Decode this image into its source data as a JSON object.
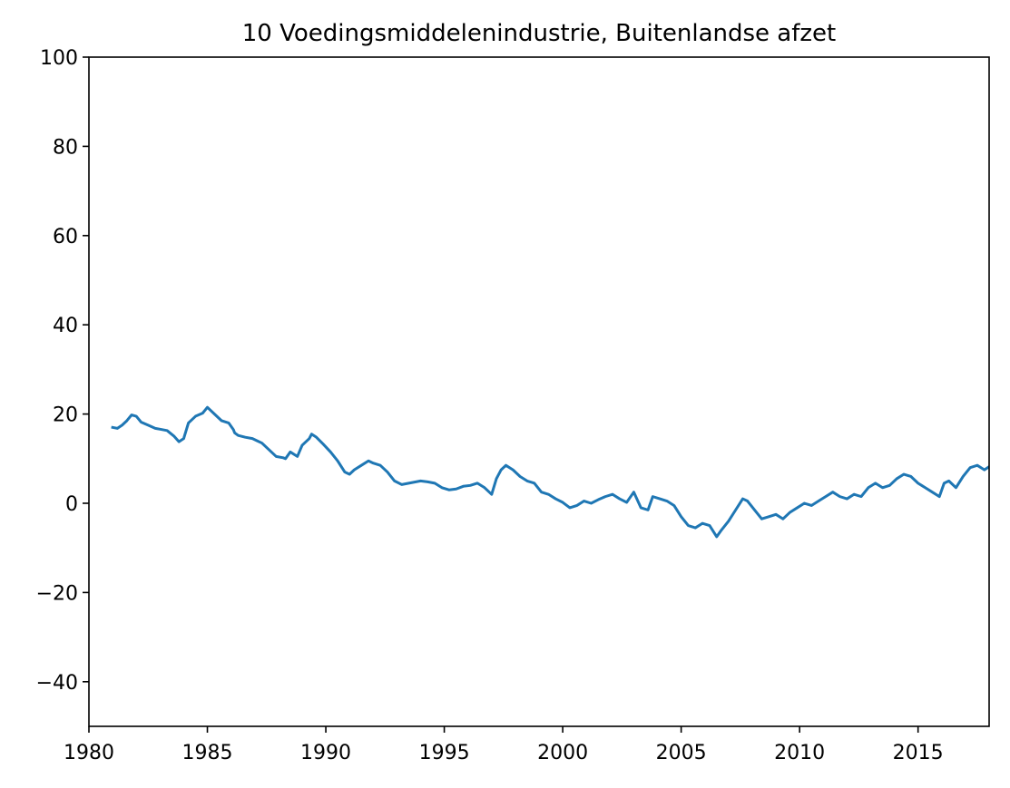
{
  "chart_data": {
    "type": "line",
    "title": "10 Voedingsmiddelenindustrie, Buitenlandse afzet",
    "xlabel": "",
    "ylabel": "",
    "xlim": [
      1980,
      2018
    ],
    "ylim": [
      -50,
      100
    ],
    "grid": false,
    "x_ticks": [
      1980,
      1985,
      1990,
      1995,
      2000,
      2005,
      2010,
      2015
    ],
    "y_ticks": [
      -40,
      -20,
      0,
      20,
      40,
      60,
      80,
      100
    ],
    "x_tick_labels": [
      "1980",
      "1985",
      "1990",
      "1995",
      "2000",
      "2005",
      "2010",
      "2015"
    ],
    "y_tick_labels": [
      "−40",
      "−20",
      "0",
      "20",
      "40",
      "60",
      "80",
      "100"
    ],
    "series": [
      {
        "color": "#1f77b4",
        "x": [
          1981.0,
          1981.2,
          1981.4,
          1981.6,
          1981.8,
          1982.0,
          1982.2,
          1982.5,
          1982.8,
          1983.0,
          1983.3,
          1983.6,
          1983.8,
          1984.0,
          1984.2,
          1984.5,
          1984.8,
          1985.0,
          1985.3,
          1985.6,
          1985.9,
          1986.1,
          1986.15,
          1986.3,
          1986.6,
          1986.9,
          1987.1,
          1987.3,
          1987.6,
          1987.9,
          1988.2,
          1988.3,
          1988.5,
          1988.8,
          1989.0,
          1989.3,
          1989.4,
          1989.6,
          1989.9,
          1990.2,
          1990.5,
          1990.8,
          1991.0,
          1991.2,
          1991.5,
          1991.8,
          1992.0,
          1992.3,
          1992.6,
          1992.9,
          1993.2,
          1993.5,
          1993.8,
          1994.0,
          1994.3,
          1994.6,
          1994.9,
          1995.2,
          1995.5,
          1995.8,
          1996.1,
          1996.4,
          1996.7,
          1997.0,
          1997.2,
          1997.4,
          1997.6,
          1997.9,
          1998.2,
          1998.5,
          1998.8,
          1999.1,
          1999.4,
          1999.7,
          2000.0,
          2000.3,
          2000.6,
          2000.9,
          2001.2,
          2001.5,
          2001.8,
          2002.1,
          2002.4,
          2002.7,
          2003.0,
          2003.3,
          2003.6,
          2003.8,
          2004.1,
          2004.4,
          2004.7,
          2005.0,
          2005.3,
          2005.6,
          2005.9,
          2006.2,
          2006.5,
          2006.7,
          2007.0,
          2007.3,
          2007.6,
          2007.8,
          2008.1,
          2008.4,
          2008.7,
          2009.0,
          2009.3,
          2009.6,
          2009.9,
          2010.2,
          2010.5,
          2010.8,
          2011.1,
          2011.4,
          2011.7,
          2012.0,
          2012.3,
          2012.6,
          2012.9,
          2013.2,
          2013.5,
          2013.8,
          2014.1,
          2014.4,
          2014.7,
          2015.0,
          2015.3,
          2015.6,
          2015.9,
          2016.1,
          2016.3,
          2016.6,
          2016.9,
          2017.2,
          2017.5,
          2017.8,
          2018.0
        ],
        "y": [
          17.0,
          16.8,
          17.5,
          18.5,
          19.8,
          19.5,
          18.2,
          17.5,
          16.8,
          16.6,
          16.3,
          15.0,
          13.8,
          14.5,
          18.0,
          19.5,
          20.2,
          21.5,
          20.0,
          18.5,
          18.0,
          16.5,
          15.8,
          15.2,
          14.8,
          14.5,
          14.0,
          13.5,
          12.0,
          10.5,
          10.2,
          10.0,
          11.5,
          10.5,
          13.0,
          14.5,
          15.5,
          14.8,
          13.2,
          11.5,
          9.5,
          7.0,
          6.5,
          7.5,
          8.5,
          9.5,
          9.0,
          8.5,
          7.0,
          5.0,
          4.2,
          4.5,
          4.8,
          5.0,
          4.8,
          4.5,
          3.5,
          3.0,
          3.2,
          3.8,
          4.0,
          4.5,
          3.5,
          2.0,
          5.5,
          7.5,
          8.5,
          7.5,
          6.0,
          5.0,
          4.5,
          2.5,
          2.0,
          1.0,
          0.2,
          -1.0,
          -0.5,
          0.5,
          0.0,
          0.8,
          1.5,
          2.0,
          1.0,
          0.2,
          2.5,
          -1.0,
          -1.5,
          1.5,
          1.0,
          0.5,
          -0.5,
          -3.0,
          -5.0,
          -5.5,
          -4.5,
          -5.0,
          -7.5,
          -6.0,
          -4.0,
          -1.5,
          1.0,
          0.5,
          -1.5,
          -3.5,
          -3.0,
          -2.5,
          -3.5,
          -2.0,
          -1.0,
          0.0,
          -0.5,
          0.5,
          1.5,
          2.5,
          1.5,
          1.0,
          2.0,
          1.5,
          3.5,
          4.5,
          3.5,
          4.0,
          5.5,
          6.5,
          6.0,
          4.5,
          3.5,
          2.5,
          1.5,
          4.5,
          5.0,
          3.5,
          6.0,
          8.0,
          8.5,
          7.5,
          8.2
        ]
      }
    ]
  }
}
